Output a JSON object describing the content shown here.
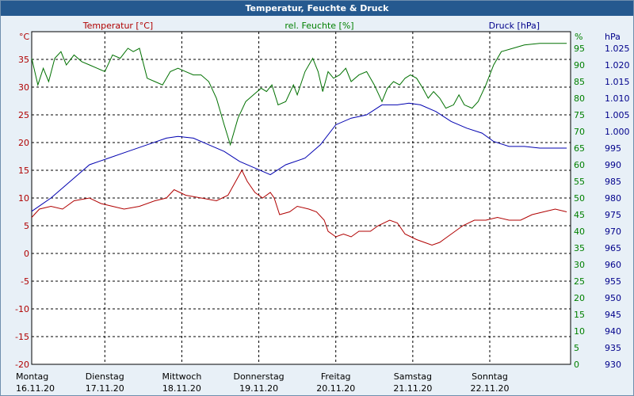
{
  "title": "Temperatur, Feuchte & Druck",
  "chart_data": {
    "type": "line",
    "legend": {
      "temp": "Temperatur [°C]",
      "hum": "rel. Feuchte [%]",
      "press": "Druck [hPa]"
    },
    "axes": {
      "left": {
        "unit": "°C",
        "ticks": [
          "35",
          "30",
          "25",
          "20",
          "15",
          "10",
          "5",
          "0",
          "-5",
          "-10",
          "-15",
          "-20"
        ],
        "range": [
          -20,
          40
        ],
        "color": "#b00000"
      },
      "mid": {
        "unit": "%",
        "ticks": [
          "95",
          "90",
          "85",
          "80",
          "75",
          "70",
          "65",
          "60",
          "55",
          "50",
          "45",
          "40",
          "35",
          "30",
          "25",
          "20",
          "15",
          "10",
          "5",
          "0"
        ],
        "range": [
          0,
          100
        ],
        "color": "#008000"
      },
      "right": {
        "unit": "hPa",
        "ticks": [
          "1.025",
          "1.020",
          "1.015",
          "1.010",
          "1.005",
          "1.000",
          "995",
          "990",
          "985",
          "980",
          "975",
          "970",
          "965",
          "960",
          "955",
          "950",
          "945",
          "940",
          "935",
          "930"
        ],
        "range": [
          930,
          1030
        ],
        "color": "#00008b"
      }
    },
    "days": [
      {
        "day": "Montag",
        "date": "16.11.20"
      },
      {
        "day": "Dienstag",
        "date": "17.11.20"
      },
      {
        "day": "Mittwoch",
        "date": "18.11.20"
      },
      {
        "day": "Donnerstag",
        "date": "19.11.20"
      },
      {
        "day": "Freitag",
        "date": "20.11.20"
      },
      {
        "day": "Samstag",
        "date": "21.11.20"
      },
      {
        "day": "Sonntag",
        "date": "22.11.20"
      }
    ],
    "x_range_days": [
      0,
      7
    ],
    "grid": true,
    "series": [
      {
        "name": "Temperatur [°C]",
        "axis": "left",
        "color": "#b00000",
        "points": [
          [
            0.0,
            6.5
          ],
          [
            0.1,
            8.0
          ],
          [
            0.25,
            8.5
          ],
          [
            0.4,
            8.0
          ],
          [
            0.55,
            9.5
          ],
          [
            0.75,
            10.0
          ],
          [
            0.9,
            9.0
          ],
          [
            1.05,
            8.5
          ],
          [
            1.2,
            8.0
          ],
          [
            1.4,
            8.5
          ],
          [
            1.6,
            9.5
          ],
          [
            1.75,
            10.0
          ],
          [
            1.85,
            11.5
          ],
          [
            2.0,
            10.5
          ],
          [
            2.2,
            10.0
          ],
          [
            2.4,
            9.5
          ],
          [
            2.55,
            10.5
          ],
          [
            2.65,
            13.0
          ],
          [
            2.73,
            15.0
          ],
          [
            2.8,
            13.0
          ],
          [
            2.9,
            11.0
          ],
          [
            3.0,
            10.0
          ],
          [
            3.1,
            11.0
          ],
          [
            3.15,
            10.0
          ],
          [
            3.22,
            7.0
          ],
          [
            3.35,
            7.5
          ],
          [
            3.45,
            8.5
          ],
          [
            3.6,
            8.0
          ],
          [
            3.7,
            7.5
          ],
          [
            3.8,
            6.0
          ],
          [
            3.85,
            4.0
          ],
          [
            3.95,
            3.0
          ],
          [
            4.05,
            3.5
          ],
          [
            4.15,
            3.0
          ],
          [
            4.25,
            4.0
          ],
          [
            4.4,
            4.0
          ],
          [
            4.5,
            5.0
          ],
          [
            4.65,
            6.0
          ],
          [
            4.75,
            5.5
          ],
          [
            4.85,
            3.5
          ],
          [
            5.0,
            2.5
          ],
          [
            5.1,
            2.0
          ],
          [
            5.2,
            1.5
          ],
          [
            5.3,
            2.0
          ],
          [
            5.4,
            3.0
          ],
          [
            5.5,
            4.0
          ],
          [
            5.6,
            5.0
          ],
          [
            5.75,
            6.0
          ],
          [
            5.9,
            6.0
          ],
          [
            6.05,
            6.5
          ],
          [
            6.2,
            6.0
          ],
          [
            6.35,
            6.0
          ],
          [
            6.5,
            7.0
          ],
          [
            6.65,
            7.5
          ],
          [
            6.8,
            8.0
          ],
          [
            6.95,
            7.5
          ]
        ]
      },
      {
        "name": "rel. Feuchte [%]",
        "axis": "mid",
        "color": "#007000",
        "points": [
          [
            0.0,
            92
          ],
          [
            0.08,
            84
          ],
          [
            0.15,
            89
          ],
          [
            0.22,
            85
          ],
          [
            0.3,
            92
          ],
          [
            0.38,
            94
          ],
          [
            0.45,
            90
          ],
          [
            0.55,
            93
          ],
          [
            0.65,
            91
          ],
          [
            0.75,
            90
          ],
          [
            0.85,
            89
          ],
          [
            0.95,
            88
          ],
          [
            1.05,
            93
          ],
          [
            1.15,
            92
          ],
          [
            1.25,
            95
          ],
          [
            1.32,
            94
          ],
          [
            1.4,
            95
          ],
          [
            1.5,
            86
          ],
          [
            1.6,
            85
          ],
          [
            1.7,
            84
          ],
          [
            1.8,
            88
          ],
          [
            1.9,
            89
          ],
          [
            2.0,
            88
          ],
          [
            2.1,
            87
          ],
          [
            2.2,
            87
          ],
          [
            2.3,
            85
          ],
          [
            2.4,
            80
          ],
          [
            2.5,
            72
          ],
          [
            2.58,
            66
          ],
          [
            2.68,
            74
          ],
          [
            2.78,
            79
          ],
          [
            2.88,
            81
          ],
          [
            2.98,
            83
          ],
          [
            3.05,
            82
          ],
          [
            3.12,
            84
          ],
          [
            3.2,
            78
          ],
          [
            3.3,
            79
          ],
          [
            3.4,
            84
          ],
          [
            3.45,
            81
          ],
          [
            3.55,
            88
          ],
          [
            3.65,
            92
          ],
          [
            3.72,
            88
          ],
          [
            3.78,
            82
          ],
          [
            3.85,
            88
          ],
          [
            3.92,
            86
          ],
          [
            4.0,
            87
          ],
          [
            4.08,
            89
          ],
          [
            4.15,
            85
          ],
          [
            4.25,
            87
          ],
          [
            4.35,
            88
          ],
          [
            4.45,
            84
          ],
          [
            4.55,
            79
          ],
          [
            4.62,
            83
          ],
          [
            4.7,
            85
          ],
          [
            4.78,
            84
          ],
          [
            4.85,
            86
          ],
          [
            4.92,
            87
          ],
          [
            5.0,
            86
          ],
          [
            5.08,
            83
          ],
          [
            5.15,
            80
          ],
          [
            5.22,
            82
          ],
          [
            5.3,
            80
          ],
          [
            5.38,
            77
          ],
          [
            5.48,
            78
          ],
          [
            5.55,
            81
          ],
          [
            5.62,
            78
          ],
          [
            5.72,
            77
          ],
          [
            5.8,
            79
          ],
          [
            5.9,
            84
          ],
          [
            6.0,
            90
          ],
          [
            6.1,
            94
          ],
          [
            6.25,
            95
          ],
          [
            6.4,
            96
          ],
          [
            6.6,
            96.5
          ],
          [
            6.95,
            96.5
          ]
        ]
      },
      {
        "name": "Druck [hPa]",
        "axis": "right",
        "color": "#0000b0",
        "points": [
          [
            0.0,
            976
          ],
          [
            0.25,
            980
          ],
          [
            0.5,
            985
          ],
          [
            0.75,
            990
          ],
          [
            1.0,
            992
          ],
          [
            1.25,
            994
          ],
          [
            1.5,
            996
          ],
          [
            1.75,
            998
          ],
          [
            1.9,
            998.5
          ],
          [
            2.1,
            998
          ],
          [
            2.3,
            996
          ],
          [
            2.5,
            994
          ],
          [
            2.7,
            991
          ],
          [
            2.9,
            989
          ],
          [
            3.1,
            987
          ],
          [
            3.3,
            990
          ],
          [
            3.55,
            992
          ],
          [
            3.75,
            996
          ],
          [
            3.95,
            1002
          ],
          [
            4.15,
            1004
          ],
          [
            4.35,
            1005
          ],
          [
            4.55,
            1008
          ],
          [
            4.75,
            1008
          ],
          [
            4.9,
            1008.5
          ],
          [
            5.05,
            1008
          ],
          [
            5.25,
            1006
          ],
          [
            5.45,
            1003
          ],
          [
            5.65,
            1001
          ],
          [
            5.85,
            999.5
          ],
          [
            6.0,
            997
          ],
          [
            6.2,
            995.5
          ],
          [
            6.4,
            995.5
          ],
          [
            6.6,
            995
          ],
          [
            6.95,
            995
          ]
        ]
      }
    ]
  }
}
